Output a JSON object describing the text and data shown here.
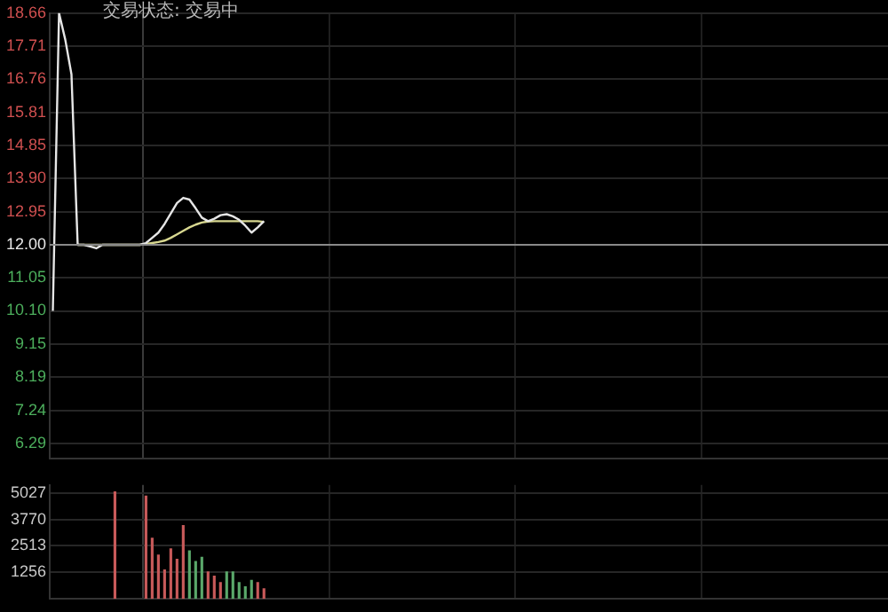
{
  "chart_data": [
    {
      "type": "line",
      "title": "交易状态: 交易中",
      "categories": [
        null,
        null,
        null,
        null,
        null,
        null,
        null,
        null,
        null,
        null,
        null,
        null,
        null,
        null,
        null,
        null,
        null,
        null,
        null,
        null,
        null,
        null,
        null,
        null,
        null,
        null,
        null,
        null,
        null,
        null,
        null,
        null,
        null,
        null,
        null,
        null,
        null,
        null,
        null,
        null,
        null,
        null,
        null,
        null,
        null,
        null,
        null,
        null,
        null,
        null,
        null,
        null,
        null,
        null,
        null,
        null,
        null,
        null,
        null,
        null,
        null,
        null,
        null,
        null,
        null,
        null,
        null,
        null,
        null,
        null,
        null,
        null,
        null,
        null,
        null,
        null,
        null,
        null,
        null,
        null,
        null,
        null,
        null,
        null,
        null,
        null,
        null,
        null,
        null,
        null,
        null,
        null,
        null,
        null,
        null,
        null,
        null,
        null,
        null,
        null,
        null,
        null,
        null,
        null,
        null,
        null,
        null,
        null,
        null,
        null,
        null,
        null,
        null,
        null,
        null,
        null,
        null,
        null,
        null,
        null,
        null,
        null,
        null,
        null,
        null,
        null,
        null,
        null,
        null,
        null,
        null,
        null,
        null,
        null,
        null
      ],
      "series": [
        {
          "color": "#e6e6e6",
          "values": [
            10.1,
            18.66,
            17.9,
            16.9,
            12.0,
            12.0,
            11.95,
            11.9,
            12.0,
            12.0,
            12.0,
            12.0,
            12.0,
            12.0,
            12.0,
            12.05,
            12.2,
            12.35,
            12.6,
            12.9,
            13.2,
            13.35,
            13.3,
            13.05,
            12.78,
            12.68,
            12.75,
            12.85,
            12.88,
            12.82,
            12.72,
            12.55,
            12.35,
            12.5,
            12.68,
            null,
            null,
            null,
            null,
            null,
            null,
            null,
            null,
            null,
            null,
            null,
            null,
            null,
            null,
            null,
            null,
            null,
            null,
            null,
            null,
            null,
            null,
            null,
            null,
            null,
            null,
            null,
            null,
            null,
            null,
            null,
            null,
            null,
            null,
            null,
            null,
            null,
            null,
            null,
            null,
            null,
            null,
            null,
            null,
            null,
            null,
            null,
            null,
            null,
            null,
            null,
            null,
            null,
            null,
            null,
            null,
            null,
            null,
            null,
            null,
            null,
            null,
            null,
            null,
            null,
            null,
            null,
            null,
            null,
            null,
            null,
            null,
            null,
            null,
            null,
            null,
            null,
            null,
            null,
            null,
            null,
            null,
            null,
            null,
            null,
            null,
            null,
            null,
            null,
            null,
            null,
            null,
            null,
            null,
            null,
            null,
            null,
            null,
            null,
            null
          ]
        },
        {
          "color": "#d8d890",
          "values": [
            null,
            null,
            null,
            null,
            12.0,
            12.0,
            12.0,
            12.0,
            12.0,
            12.0,
            12.0,
            12.0,
            12.0,
            12.0,
            12.0,
            12.02,
            12.05,
            12.08,
            12.12,
            12.2,
            12.3,
            12.4,
            12.5,
            12.58,
            12.64,
            12.67,
            12.68,
            12.68,
            12.68,
            12.68,
            12.68,
            12.68,
            12.68,
            12.68,
            12.66,
            null,
            null,
            null,
            null,
            null,
            null,
            null,
            null,
            null,
            null,
            null,
            null,
            null,
            null,
            null,
            null,
            null,
            null,
            null,
            null,
            null,
            null,
            null,
            null,
            null,
            null,
            null,
            null,
            null,
            null,
            null,
            null,
            null,
            null,
            null,
            null,
            null,
            null,
            null,
            null,
            null,
            null,
            null,
            null,
            null,
            null,
            null,
            null,
            null,
            null,
            null,
            null,
            null,
            null,
            null,
            null,
            null,
            null,
            null,
            null,
            null,
            null,
            null,
            null,
            null,
            null,
            null,
            null,
            null,
            null,
            null,
            null,
            null,
            null,
            null,
            null,
            null,
            null,
            null,
            null,
            null,
            null,
            null,
            null,
            null,
            null,
            null,
            null,
            null,
            null,
            null,
            null,
            null,
            null,
            null,
            null,
            null,
            null,
            null,
            null
          ]
        }
      ],
      "ylim": [
        5.85,
        18.66
      ],
      "yticks": [
        18.66,
        17.71,
        16.76,
        15.81,
        14.85,
        {
          "value": 13.9,
          "label": "13.90"
        },
        12.95,
        {
          "value": 12,
          "label": "12.00"
        },
        11.05,
        {
          "value": 10.1,
          "label": "10.10"
        },
        9.15,
        8.19,
        7.24,
        6.29
      ],
      "ref_lines": [
        {
          "axis": "y",
          "value": 12,
          "color": "#8a8a8a"
        }
      ],
      "grid": true,
      "legend": false,
      "marker": "none",
      "line_style": "solid"
    },
    {
      "type": "bar",
      "categories": [
        null,
        null,
        null,
        null,
        null,
        null,
        null,
        null,
        null,
        null,
        null,
        null,
        null,
        null,
        null,
        null,
        null,
        null,
        null,
        null,
        null,
        null,
        null,
        null,
        null,
        null,
        null,
        null,
        null,
        null,
        null,
        null,
        null,
        null,
        null,
        null,
        null,
        null,
        null,
        null,
        null,
        null,
        null,
        null,
        null,
        null,
        null,
        null,
        null,
        null,
        null,
        null,
        null,
        null,
        null,
        null,
        null,
        null,
        null,
        null,
        null,
        null,
        null,
        null,
        null,
        null,
        null,
        null,
        null,
        null,
        null,
        null,
        null,
        null,
        null,
        null,
        null,
        null,
        null,
        null,
        null,
        null,
        null,
        null,
        null,
        null,
        null,
        null,
        null,
        null,
        null,
        null,
        null,
        null,
        null,
        null,
        null,
        null,
        null,
        null,
        null,
        null,
        null,
        null,
        null,
        null,
        null,
        null,
        null,
        null,
        null,
        null,
        null,
        null,
        null,
        null,
        null,
        null,
        null,
        null,
        null,
        null,
        null,
        null,
        null,
        null,
        null,
        null,
        null,
        null,
        null,
        null,
        null,
        null,
        null
      ],
      "values": [
        null,
        null,
        null,
        null,
        null,
        null,
        null,
        null,
        null,
        null,
        5100,
        null,
        null,
        null,
        null,
        4900,
        2900,
        2100,
        1400,
        2400,
        1900,
        3500,
        2300,
        1800,
        2000,
        1300,
        1100,
        800,
        1300,
        1300,
        800,
        600,
        900,
        800,
        500,
        null,
        null,
        null,
        null,
        null,
        null,
        null,
        null,
        null,
        null,
        null,
        null,
        null,
        null,
        null,
        null,
        null,
        null,
        null,
        null,
        null,
        null,
        null,
        null,
        null,
        null,
        null,
        null,
        null,
        null,
        null,
        null,
        null,
        null,
        null,
        null,
        null,
        null,
        null,
        null,
        null,
        null,
        null,
        null,
        null,
        null,
        null,
        null,
        null,
        null,
        null,
        null,
        null,
        null,
        null,
        null,
        null,
        null,
        null,
        null,
        null,
        null,
        null,
        null,
        null,
        null,
        null,
        null,
        null,
        null,
        null,
        null,
        null,
        null,
        null,
        null,
        null,
        null,
        null,
        null,
        null,
        null,
        null,
        null,
        null,
        null,
        null,
        null,
        null,
        null,
        null,
        null,
        null,
        null,
        null,
        null,
        null,
        null,
        null,
        null
      ],
      "colors": [
        null,
        null,
        null,
        null,
        null,
        null,
        null,
        null,
        null,
        null,
        "#c85a5a",
        null,
        null,
        null,
        null,
        "#c85a5a",
        "#c85a5a",
        "#c85a5a",
        "#c85a5a",
        "#c85a5a",
        "#c85a5a",
        "#c85a5a",
        "#5aa86a",
        "#5aa86a",
        "#5aa86a",
        "#c85a5a",
        "#c85a5a",
        "#c85a5a",
        "#5aa86a",
        "#5aa86a",
        "#5aa86a",
        "#5aa86a",
        "#5aa86a",
        "#c85a5a",
        "#c85a5a",
        null,
        null,
        null,
        null,
        null,
        null,
        null,
        null,
        null,
        null,
        null,
        null,
        null,
        null,
        null,
        null,
        null,
        null,
        null,
        null,
        null,
        null,
        null,
        null,
        null,
        null,
        null,
        null,
        null,
        null,
        null,
        null,
        null,
        null,
        null,
        null,
        null,
        null,
        null,
        null,
        null,
        null,
        null,
        null,
        null,
        null,
        null,
        null,
        null,
        null,
        null,
        null,
        null,
        null,
        null,
        null,
        null,
        null,
        null,
        null,
        null,
        null,
        null,
        null,
        null,
        null,
        null,
        null,
        null,
        null,
        null,
        null,
        null,
        null,
        null,
        null,
        null,
        null,
        null,
        null,
        null,
        null,
        null,
        null,
        null,
        null,
        null,
        null,
        null,
        null,
        null,
        null,
        null,
        null,
        null,
        null,
        null,
        null,
        null,
        null
      ],
      "ylim": [
        0,
        5400
      ],
      "yticks": [
        5027,
        3770,
        2513,
        1256
      ],
      "grid": true,
      "legend": false
    }
  ]
}
